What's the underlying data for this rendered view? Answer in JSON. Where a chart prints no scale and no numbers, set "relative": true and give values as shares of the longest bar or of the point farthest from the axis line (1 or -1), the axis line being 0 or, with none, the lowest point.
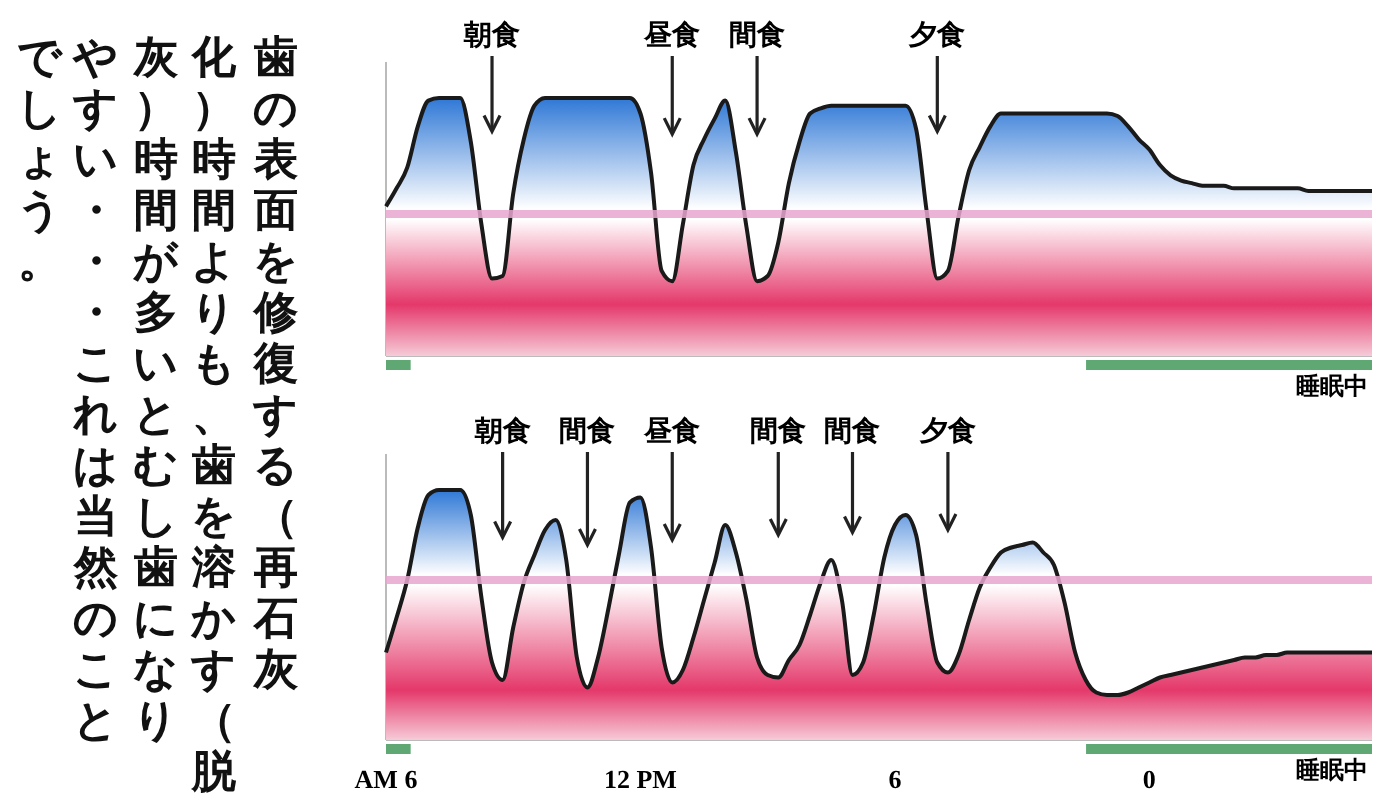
{
  "chart_data": [
    {
      "type": "other",
      "annotations": [
        "歯の表面を修復する（再石灰",
        "化）時間よりも、歯を溶かす（脱",
        "灰）時間が多いとむし歯になり",
        "やすい・・・これは当然のこと",
        "でしょう。"
      ]
    },
    {
      "type": "area",
      "relative": true,
      "categories": [
        null,
        null,
        null,
        null,
        null,
        null,
        null,
        null,
        null,
        null,
        null,
        null,
        null,
        null,
        null,
        null,
        null,
        null,
        null,
        null,
        null,
        null,
        null,
        null,
        null,
        null,
        null,
        null,
        null,
        null,
        null,
        null,
        null,
        null,
        null,
        null,
        null,
        null,
        null,
        null,
        null,
        null,
        null,
        null,
        null,
        null,
        null,
        null,
        null,
        null,
        null,
        null,
        null,
        null,
        null,
        null,
        null,
        null,
        null,
        null,
        null,
        null,
        null,
        null,
        null,
        null,
        null,
        null,
        null,
        null,
        null,
        null,
        null,
        null,
        null,
        null,
        null,
        null,
        null,
        null,
        null,
        null,
        null,
        null,
        null,
        null,
        null,
        null,
        null,
        null,
        null,
        null,
        null,
        null
      ],
      "series": [
        {
          "color": "#1a1a1a",
          "values": [
            0.58,
            0.65,
            0.73,
            0.89,
            0.99,
            1,
            1,
            1,
            0.83,
            0.51,
            0.3,
            0.31,
            0.63,
            0.84,
            0.97,
            1,
            1,
            1,
            1,
            1,
            1,
            1,
            1,
            1,
            0.94,
            0.71,
            0.33,
            0.29,
            0.51,
            0.74,
            0.84,
            0.92,
            0.99,
            0.79,
            0.5,
            0.29,
            0.31,
            0.44,
            0.67,
            0.83,
            0.94,
            0.96,
            0.97,
            0.97,
            0.97,
            0.97,
            0.97,
            0.97,
            0.97,
            0.97,
            0.88,
            0.56,
            0.3,
            0.33,
            0.54,
            0.72,
            0.81,
            0.89,
            0.94,
            0.94,
            0.94,
            0.94,
            0.94,
            0.94,
            0.94,
            0.94,
            0.94,
            0.94,
            0.94,
            0.93,
            0.89,
            0.84,
            0.8,
            0.74,
            0.7,
            0.68,
            0.67,
            0.66,
            0.66,
            0.66,
            0.65,
            0.65,
            0.65,
            0.65,
            0.65,
            0.65,
            0.65,
            0.64,
            0.64,
            0.64,
            0.64,
            0.64,
            0.64,
            0.64
          ]
        }
      ],
      "ref_lines": [
        {
          "axis": "y",
          "value": 0.55,
          "color": "#e8a6cf"
        }
      ],
      "annotations": [
        "朝食",
        "昼食",
        "間食",
        "夕食",
        "睡眠中"
      ]
    },
    {
      "type": "area",
      "relative": true,
      "categories": [
        "AM 6",
        null,
        null,
        null,
        null,
        null,
        null,
        null,
        null,
        null,
        null,
        null,
        null,
        null,
        null,
        null,
        null,
        null,
        null,
        null,
        null,
        null,
        null,
        null,
        "12 PM",
        null,
        null,
        null,
        null,
        null,
        null,
        null,
        null,
        null,
        null,
        null,
        null,
        null,
        null,
        null,
        null,
        null,
        null,
        null,
        null,
        null,
        null,
        null,
        "6",
        null,
        null,
        null,
        null,
        null,
        null,
        null,
        null,
        null,
        null,
        null,
        null,
        null,
        null,
        null,
        null,
        null,
        null,
        null,
        null,
        null,
        null,
        null,
        "0",
        null,
        null,
        null,
        null,
        null,
        null,
        null,
        null,
        null,
        null,
        null,
        null,
        null,
        null,
        null,
        null,
        null,
        null,
        null,
        null,
        null
      ],
      "series": [
        {
          "color": "#1a1a1a",
          "values": [
            0.35,
            0.49,
            0.64,
            0.85,
            0.98,
            1,
            1,
            1,
            0.9,
            0.57,
            0.31,
            0.24,
            0.45,
            0.63,
            0.74,
            0.84,
            0.88,
            0.72,
            0.33,
            0.21,
            0.33,
            0.53,
            0.75,
            0.95,
            0.97,
            0.77,
            0.37,
            0.23,
            0.28,
            0.41,
            0.56,
            0.71,
            0.86,
            0.75,
            0.56,
            0.33,
            0.26,
            0.25,
            0.32,
            0.38,
            0.5,
            0.63,
            0.72,
            0.56,
            0.26,
            0.31,
            0.5,
            0.73,
            0.86,
            0.9,
            0.82,
            0.54,
            0.31,
            0.27,
            0.34,
            0.48,
            0.61,
            0.69,
            0.75,
            0.77,
            0.78,
            0.79,
            0.75,
            0.7,
            0.55,
            0.35,
            0.24,
            0.19,
            0.18,
            0.18,
            0.19,
            0.21,
            0.23,
            0.25,
            0.26,
            0.27,
            0.28,
            0.29,
            0.3,
            0.31,
            0.32,
            0.33,
            0.33,
            0.34,
            0.34,
            0.35,
            0.35,
            0.35,
            0.35,
            0.35,
            0.35,
            0.35,
            0.35,
            0.35
          ]
        }
      ],
      "ref_lines": [
        {
          "axis": "y",
          "value": 0.64,
          "color": "#e8a6cf"
        }
      ],
      "annotations": [
        "朝食",
        "間食",
        "昼食",
        "間食",
        "間食",
        "夕食",
        "睡眠中"
      ]
    }
  ]
}
